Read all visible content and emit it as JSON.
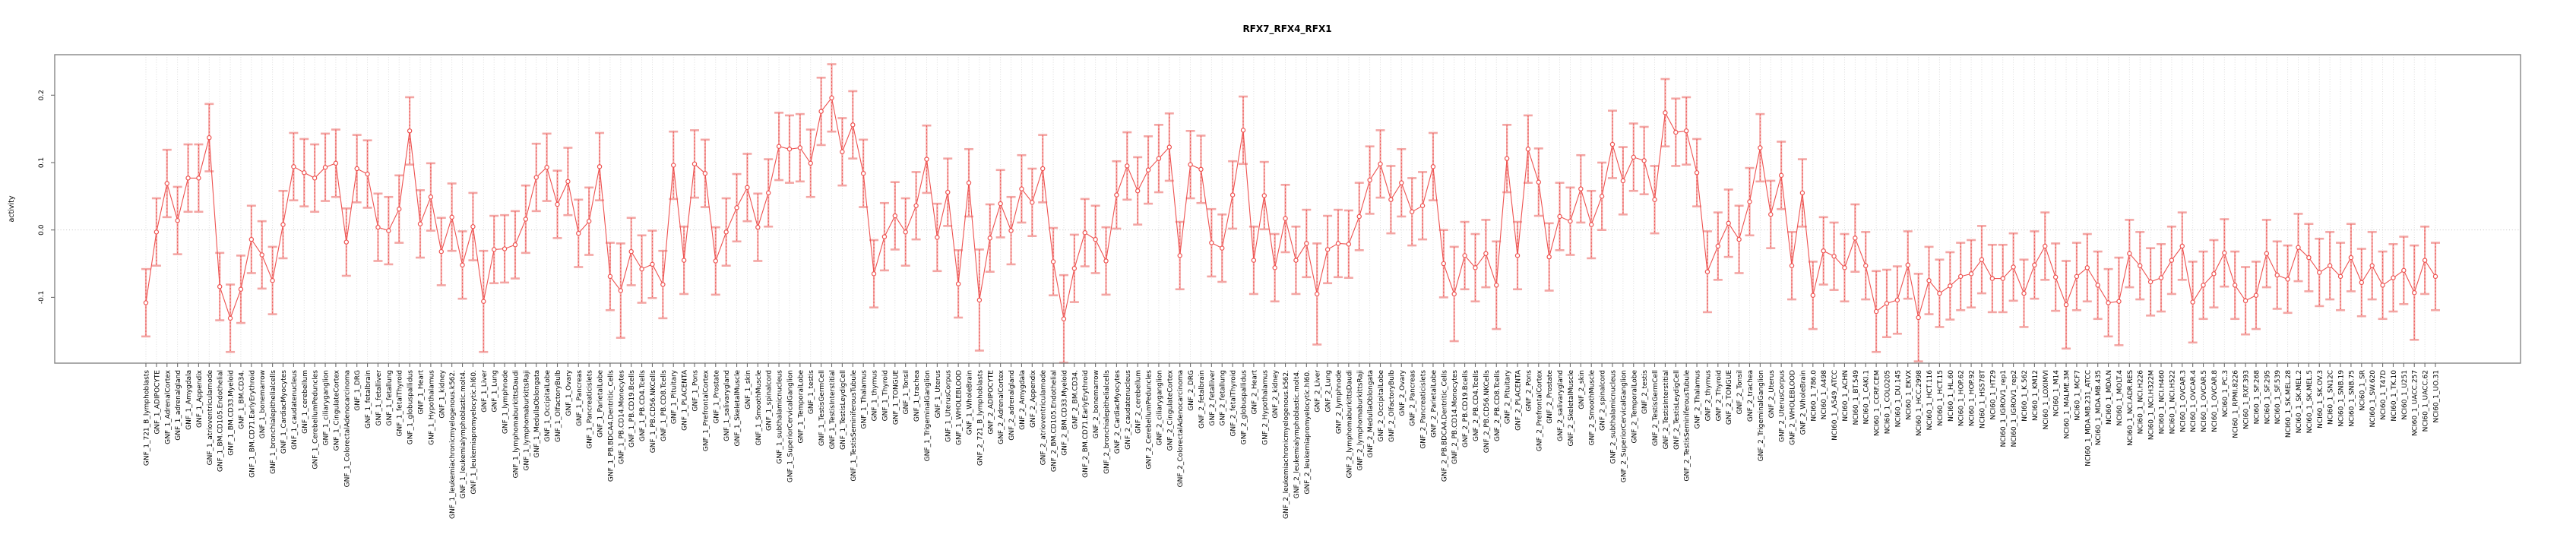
{
  "figure": {
    "background": "#ffffff"
  },
  "colors": {
    "series": "#ee5250",
    "error_bar": "#f3a6a4",
    "grid": "#d9d9d9",
    "zero_line": "#bdbdbd",
    "frame": "#858585",
    "tick": "#6e6e6e",
    "text": "#000000"
  },
  "chart_data": {
    "type": "line",
    "title": "RFX7_RFX4_RFX1",
    "xlabel": "",
    "ylabel": "activity",
    "ylim": [
      -0.198,
      0.26
    ],
    "yticks": [
      0.2,
      0.1,
      0.0,
      -0.1
    ],
    "ytick_labels": [
      "0.2",
      "0.1",
      "0.0",
      "-0.1"
    ],
    "grid": "vertical dotted gridline per category; dotted horizontal line at y=0",
    "legend": "none",
    "marker": "open-circle",
    "error_bars": true,
    "x_label_rotation": -90,
    "categories": [
      "GNF_1_721_B_lymphoblasts",
      "GNF_1_ADIPOCYTE",
      "GNF_1_AdrenalCortex",
      "GNF_1_adrenalgland",
      "GNF_1_Amygdala",
      "GNF_1_Appendix",
      "GNF_1_atrioventricularnode",
      "GNF_1_BM.CD105.Endothelial",
      "GNF_1_BM.CD33.Myeloid",
      "GNF_1_BM.CD34.",
      "GNF_1_BM.CD71.EarlyErythroid",
      "GNF_1_bonemarrow",
      "GNF_1_bronchialepithelialcells",
      "GNF_1_CardiacMyocytes",
      "GNF_1_caudatenucleus",
      "GNF_1_cerebellum",
      "GNF_1_CerebellumPeduncles",
      "GNF_1_ciliaryganglion",
      "GNF_1_CingulateCortex",
      "GNF_1_ColorectalAdenocarcinoma",
      "GNF_1_DRG",
      "GNF_1_fetalbrain",
      "GNF_1_fetalliver",
      "GNF_1_fetallung",
      "GNF_1_fetalThyroid",
      "GNF_1_globuspallidus",
      "GNF_1_Heart",
      "GNF_1_Hypothalamus",
      "GNF_1_kidney",
      "GNF_1_leukemiachronicmyelogenous.k562.",
      "GNF_1_leukemialymphoblastic.molt4.",
      "GNF_1_leukemiapromyelocytic.hl60.",
      "GNF_1_Liver",
      "GNF_1_Lung",
      "GNF_1_lymphnode",
      "GNF_1_lymphomaburkittsDaudi",
      "GNF_1_lymphomaburkittsRaji",
      "GNF_1_MedullaOblongata",
      "GNF_1_OccipitalLobe",
      "GNF_1_OlfactoryBulb",
      "GNF_1_Ovary",
      "GNF_1_Pancreas",
      "GNF_1_Pancreaticislets",
      "GNF_1_ParietalLobe",
      "GNF_1_PB.BDCA4.Dentritic_Cells",
      "GNF_1_PB.CD14.Monocytes",
      "GNF_1_PB.CD19.Bcells",
      "GNF_1_PB.CD4.Tcells",
      "GNF_1_PB.CD56.NKCells",
      "GNF_1_PB.CD8.Tcells",
      "GNF_1_Pituitary",
      "GNF_1_PLACENTA",
      "GNF_1_Pons",
      "GNF_1_PrefrontalCortex",
      "GNF_1_Prostate",
      "GNF_1_salivarygland",
      "GNF_1_SkeletalMuscle",
      "GNF_1_skin",
      "GNF_1_SmoothMuscle",
      "GNF_1_spinalcord",
      "GNF_1_subthalamicnucleus",
      "GNF_1_SuperiorCervicalGanglion",
      "GNF_1_TemporalLobe",
      "GNF_1_testis",
      "GNF_1_TestisGermCell",
      "GNF_1_TestisInterstitial",
      "GNF_1_TestisLeydigCell",
      "GNF_1_TestisSeminiferousTubule",
      "GNF_1_Thalamus",
      "GNF_1_thymus",
      "GNF_1_Thyroid",
      "GNF_1_TONGUE",
      "GNF_1_Tonsil",
      "GNF_1_trachea",
      "GNF_1_TrigeminalGanglion",
      "GNF_1_Uterus",
      "GNF_1_UterusCorpus",
      "GNF_1_WHOLEBLOOD",
      "GNF_1_WholeBrain",
      "GNF_2_721_B_lymphoblasts",
      "GNF_2_ADIPOCYTE",
      "GNF_2_AdrenalCortex",
      "GNF_2_adrenalgland",
      "GNF_2_Amygdala",
      "GNF_2_Appendix",
      "GNF_2_atrioventricularnode",
      "GNF_2_BM.CD105.Endothelial",
      "GNF_2_BM.CD33.Myeloid",
      "GNF_2_BM.CD34.",
      "GNF_2_BM.CD71.EarlyErythroid",
      "GNF_2_bonemarrow",
      "GNF_2_bronchialepithelialcells",
      "GNF_2_CardiacMyocytes",
      "GNF_2_caudatenucleus",
      "GNF_2_cerebellum",
      "GNF_2_CerebellumPeduncles",
      "GNF_2_ciliaryganglion",
      "GNF_2_CingulateCortex",
      "GNF_2_ColorectalAdenocarcinoma",
      "GNF_2_DRG",
      "GNF_2_fetalbrain",
      "GNF_2_fetalliver",
      "GNF_2_fetallung",
      "GNF_2_fetalThyroid",
      "GNF_2_globuspallidus",
      "GNF_2_Heart",
      "GNF_2_Hypothalamus",
      "GNF_2_kidney",
      "GNF_2_leukemiachronicmyelogenous.k562.",
      "GNF_2_leukemialymphoblastic.molt4.",
      "GNF_2_leukemiapromyelocytic.hl60.",
      "GNF_2_Liver",
      "GNF_2_Lung",
      "GNF_2_lymphnode",
      "GNF_2_lymphomaburkittsDaudi",
      "GNF_2_lymphomaburkittsRaji",
      "GNF_2_MedullaOblongata",
      "GNF_2_OccipitalLobe",
      "GNF_2_OlfactoryBulb",
      "GNF_2_Ovary",
      "GNF_2_Pancreas",
      "GNF_2_Pancreaticislets",
      "GNF_2_ParietalLobe",
      "GNF_2_PB.BDCA4.Dentritic_Cells",
      "GNF_2_PB.CD14.Monocytes",
      "GNF_2_PB.CD19.Bcells",
      "GNF_2_PB.CD4.Tcells",
      "GNF_2_PB.CD56.NKCells",
      "GNF_2_PB.CD8.Tcells",
      "GNF_2_Pituitary",
      "GNF_2_PLACENTA",
      "GNF_2_Pons",
      "GNF_2_PrefrontalCortex",
      "GNF_2_Prostate",
      "GNF_2_salivarygland",
      "GNF_2_SkeletalMuscle",
      "GNF_2_skin",
      "GNF_2_SmoothMuscle",
      "GNF_2_spinalcord",
      "GNF_2_subthalamicnucleus",
      "GNF_2_SuperiorCervicalGanglion",
      "GNF_2_TemporalLobe",
      "GNF_2_testis",
      "GNF_2_TestisGermCell",
      "GNF_2_TestisInterstitial",
      "GNF_2_TestisLeydigCell",
      "GNF_2_TestisSeminiferousTubule",
      "GNF_2_Thalamus",
      "GNF_2_thymus",
      "GNF_2_Thyroid",
      "GNF_2_TONGUE",
      "GNF_2_Tonsil",
      "GNF_2_trachea",
      "GNF_2_TrigeminalGanglion",
      "GNF_2_Uterus",
      "GNF_2_UterusCorpus",
      "GNF_2_WHOLEBLOOD",
      "GNF_2_WholeBrain",
      "NCI60_1_786.0",
      "NCI60_1_A498",
      "NCI60_1_A549_ATCC",
      "NCI60_1_ACHN",
      "NCI60_1_BT.549",
      "NCI60_1_CAKI.1",
      "NCI60_1_CCRF.CEM",
      "NCI60_1_COLO205",
      "NCI60_1_DU.145",
      "NCI60_1_EKVX",
      "NCI60_1_HCC.2998",
      "NCI60_1_HCT.116",
      "NCI60_1_HCT.15",
      "NCI60_1_HL.60",
      "NCI60_1_HOP.62",
      "NCI60_1_HOP.92",
      "NCI60_1_HS578T",
      "NCI60_1_HT29",
      "NCI60_1_IGROV1_rep1",
      "NCI60_1_IGROV1_rep2",
      "NCI60_1_K.562",
      "NCI60_1_KM12",
      "NCI60_1_LOXIMVI",
      "NCI60_1_M14",
      "NCI60_1_MALME.3M",
      "NCI60_1_MCF7",
      "NCI60_1_MDA.MB.231_ATCC",
      "NCI60_1_MDA.MB.435",
      "NCI60_1_MDA.N",
      "NCI60_1_MOLT.4",
      "NCI60_1_NCI.ADR.RES",
      "NCI60_1_NCI.H226",
      "NCI60_1_NCI.H322M",
      "NCI60_1_NCI.H460",
      "NCI60_1_NCI.H522",
      "NCI60_1_OVCAR.3",
      "NCI60_1_OVCAR.4",
      "NCI60_1_OVCAR.5",
      "NCI60_1_OVCAR.8",
      "NCI60_1_PC.3",
      "NCI60_1_RPMI.8226",
      "NCI60_1_RXF.393",
      "NCI60_1_SF.268",
      "NCI60_1_SF.295",
      "NCI60_1_SF.539",
      "NCI60_1_SK.MEL.28",
      "NCI60_1_SK.MEL.2",
      "NCI60_1_SK.MEL.5",
      "NCI60_1_SK.OV.3",
      "NCI60_1_SN12C",
      "NCI60_1_SNB.19",
      "NCI60_1_SNB.75",
      "NCI60_1_SR",
      "NCI60_1_SW.620",
      "NCI60_1_T47D",
      "NCI60_1_TK.10",
      "NCI60_1_U251",
      "NCI60_1_UACC.257",
      "NCI60_1_UACC.62",
      "NCI60_1_UO.31"
    ],
    "values": [
      -0.108,
      -0.003,
      0.069,
      0.014,
      0.077,
      0.077,
      0.137,
      -0.084,
      -0.131,
      -0.088,
      -0.014,
      -0.037,
      -0.075,
      0.008,
      0.094,
      0.085,
      0.077,
      0.093,
      0.099,
      -0.018,
      0.091,
      0.083,
      0.004,
      -0.001,
      0.031,
      0.147,
      0.009,
      0.049,
      -0.032,
      0.019,
      -0.052,
      0.005,
      -0.106,
      -0.029,
      -0.028,
      -0.022,
      0.016,
      0.078,
      0.093,
      0.038,
      0.072,
      -0.005,
      0.013,
      0.094,
      -0.069,
      -0.09,
      -0.032,
      -0.058,
      -0.051,
      -0.081,
      0.096,
      -0.045,
      0.098,
      0.084,
      -0.046,
      -0.003,
      0.033,
      0.063,
      0.004,
      0.055,
      0.124,
      0.12,
      0.122,
      0.099,
      0.176,
      0.196,
      0.116,
      0.156,
      0.084,
      -0.065,
      -0.01,
      0.021,
      -0.003,
      0.036,
      0.105,
      -0.011,
      0.056,
      -0.08,
      0.07,
      -0.104,
      -0.012,
      0.039,
      -0.001,
      0.061,
      0.041,
      0.091,
      -0.047,
      -0.132,
      -0.057,
      -0.004,
      -0.014,
      -0.046,
      0.052,
      0.095,
      0.058,
      0.089,
      0.106,
      0.123,
      -0.038,
      0.097,
      0.09,
      -0.019,
      -0.027,
      0.052,
      0.148,
      -0.045,
      0.051,
      -0.056,
      0.017,
      -0.045,
      -0.02,
      -0.095,
      -0.029,
      -0.02,
      -0.021,
      0.02,
      0.074,
      0.098,
      0.045,
      0.07,
      0.027,
      0.036,
      0.094,
      -0.05,
      -0.095,
      -0.038,
      -0.056,
      -0.035,
      -0.082,
      0.106,
      -0.038,
      0.12,
      0.071,
      -0.04,
      0.02,
      0.013,
      0.061,
      0.008,
      0.05,
      0.127,
      0.073,
      0.108,
      0.103,
      0.045,
      0.174,
      0.145,
      0.147,
      0.085,
      -0.062,
      -0.024,
      0.01,
      -0.014,
      0.042,
      0.122,
      0.023,
      0.081,
      -0.053,
      0.055,
      -0.097,
      -0.031,
      -0.039,
      -0.056,
      -0.012,
      -0.053,
      -0.121,
      -0.109,
      -0.104,
      -0.052,
      -0.13,
      -0.075,
      -0.094,
      -0.083,
      -0.069,
      -0.065,
      -0.044,
      -0.072,
      -0.072,
      -0.055,
      -0.094,
      -0.052,
      -0.024,
      -0.07,
      -0.111,
      -0.069,
      -0.056,
      -0.082,
      -0.108,
      -0.106,
      -0.035,
      -0.053,
      -0.077,
      -0.071,
      -0.045,
      -0.024,
      -0.107,
      -0.082,
      -0.065,
      -0.034,
      -0.082,
      -0.105,
      -0.097,
      -0.035,
      -0.067,
      -0.073,
      -0.026,
      -0.041,
      -0.063,
      -0.053,
      -0.069,
      -0.041,
      -0.078,
      -0.053,
      -0.082,
      -0.071,
      -0.06,
      -0.093,
      -0.045,
      -0.069
    ],
    "se": [
      0.05,
      0.05,
      0.05,
      0.05,
      0.05,
      0.05,
      0.05,
      0.05,
      0.05,
      0.05,
      0.05,
      0.05,
      0.05,
      0.05,
      0.05,
      0.05,
      0.05,
      0.05,
      0.05,
      0.05,
      0.05,
      0.05,
      0.05,
      0.05,
      0.05,
      0.05,
      0.05,
      0.05,
      0.05,
      0.05,
      0.05,
      0.05,
      0.075,
      0.05,
      0.05,
      0.05,
      0.05,
      0.05,
      0.05,
      0.05,
      0.05,
      0.05,
      0.05,
      0.05,
      0.05,
      0.07,
      0.05,
      0.05,
      0.05,
      0.05,
      0.05,
      0.05,
      0.05,
      0.05,
      0.05,
      0.05,
      0.05,
      0.05,
      0.05,
      0.05,
      0.05,
      0.05,
      0.05,
      0.05,
      0.05,
      0.05,
      0.05,
      0.05,
      0.05,
      0.05,
      0.05,
      0.05,
      0.05,
      0.05,
      0.05,
      0.05,
      0.05,
      0.05,
      0.05,
      0.075,
      0.05,
      0.05,
      0.05,
      0.05,
      0.05,
      0.05,
      0.05,
      0.065,
      0.05,
      0.05,
      0.05,
      0.05,
      0.05,
      0.05,
      0.05,
      0.05,
      0.05,
      0.05,
      0.05,
      0.05,
      0.05,
      0.05,
      0.05,
      0.05,
      0.05,
      0.05,
      0.05,
      0.05,
      0.05,
      0.05,
      0.05,
      0.075,
      0.05,
      0.05,
      0.05,
      0.05,
      0.05,
      0.05,
      0.05,
      0.05,
      0.05,
      0.05,
      0.05,
      0.05,
      0.07,
      0.05,
      0.05,
      0.05,
      0.065,
      0.05,
      0.05,
      0.05,
      0.05,
      0.05,
      0.05,
      0.05,
      0.05,
      0.05,
      0.05,
      0.05,
      0.05,
      0.05,
      0.05,
      0.05,
      0.05,
      0.05,
      0.05,
      0.05,
      0.06,
      0.05,
      0.05,
      0.05,
      0.05,
      0.05,
      0.05,
      0.05,
      0.05,
      0.05,
      0.05,
      0.05,
      0.05,
      0.05,
      0.05,
      0.05,
      0.06,
      0.05,
      0.05,
      0.05,
      0.065,
      0.05,
      0.05,
      0.05,
      0.05,
      0.05,
      0.05,
      0.05,
      0.05,
      0.05,
      0.05,
      0.05,
      0.05,
      0.05,
      0.065,
      0.05,
      0.05,
      0.05,
      0.05,
      0.065,
      0.05,
      0.05,
      0.05,
      0.05,
      0.05,
      0.05,
      0.06,
      0.05,
      0.05,
      0.05,
      0.05,
      0.05,
      0.05,
      0.05,
      0.05,
      0.05,
      0.05,
      0.05,
      0.05,
      0.05,
      0.05,
      0.05,
      0.05,
      0.05,
      0.05,
      0.05,
      0.05,
      0.07,
      0.05,
      0.05
    ]
  }
}
